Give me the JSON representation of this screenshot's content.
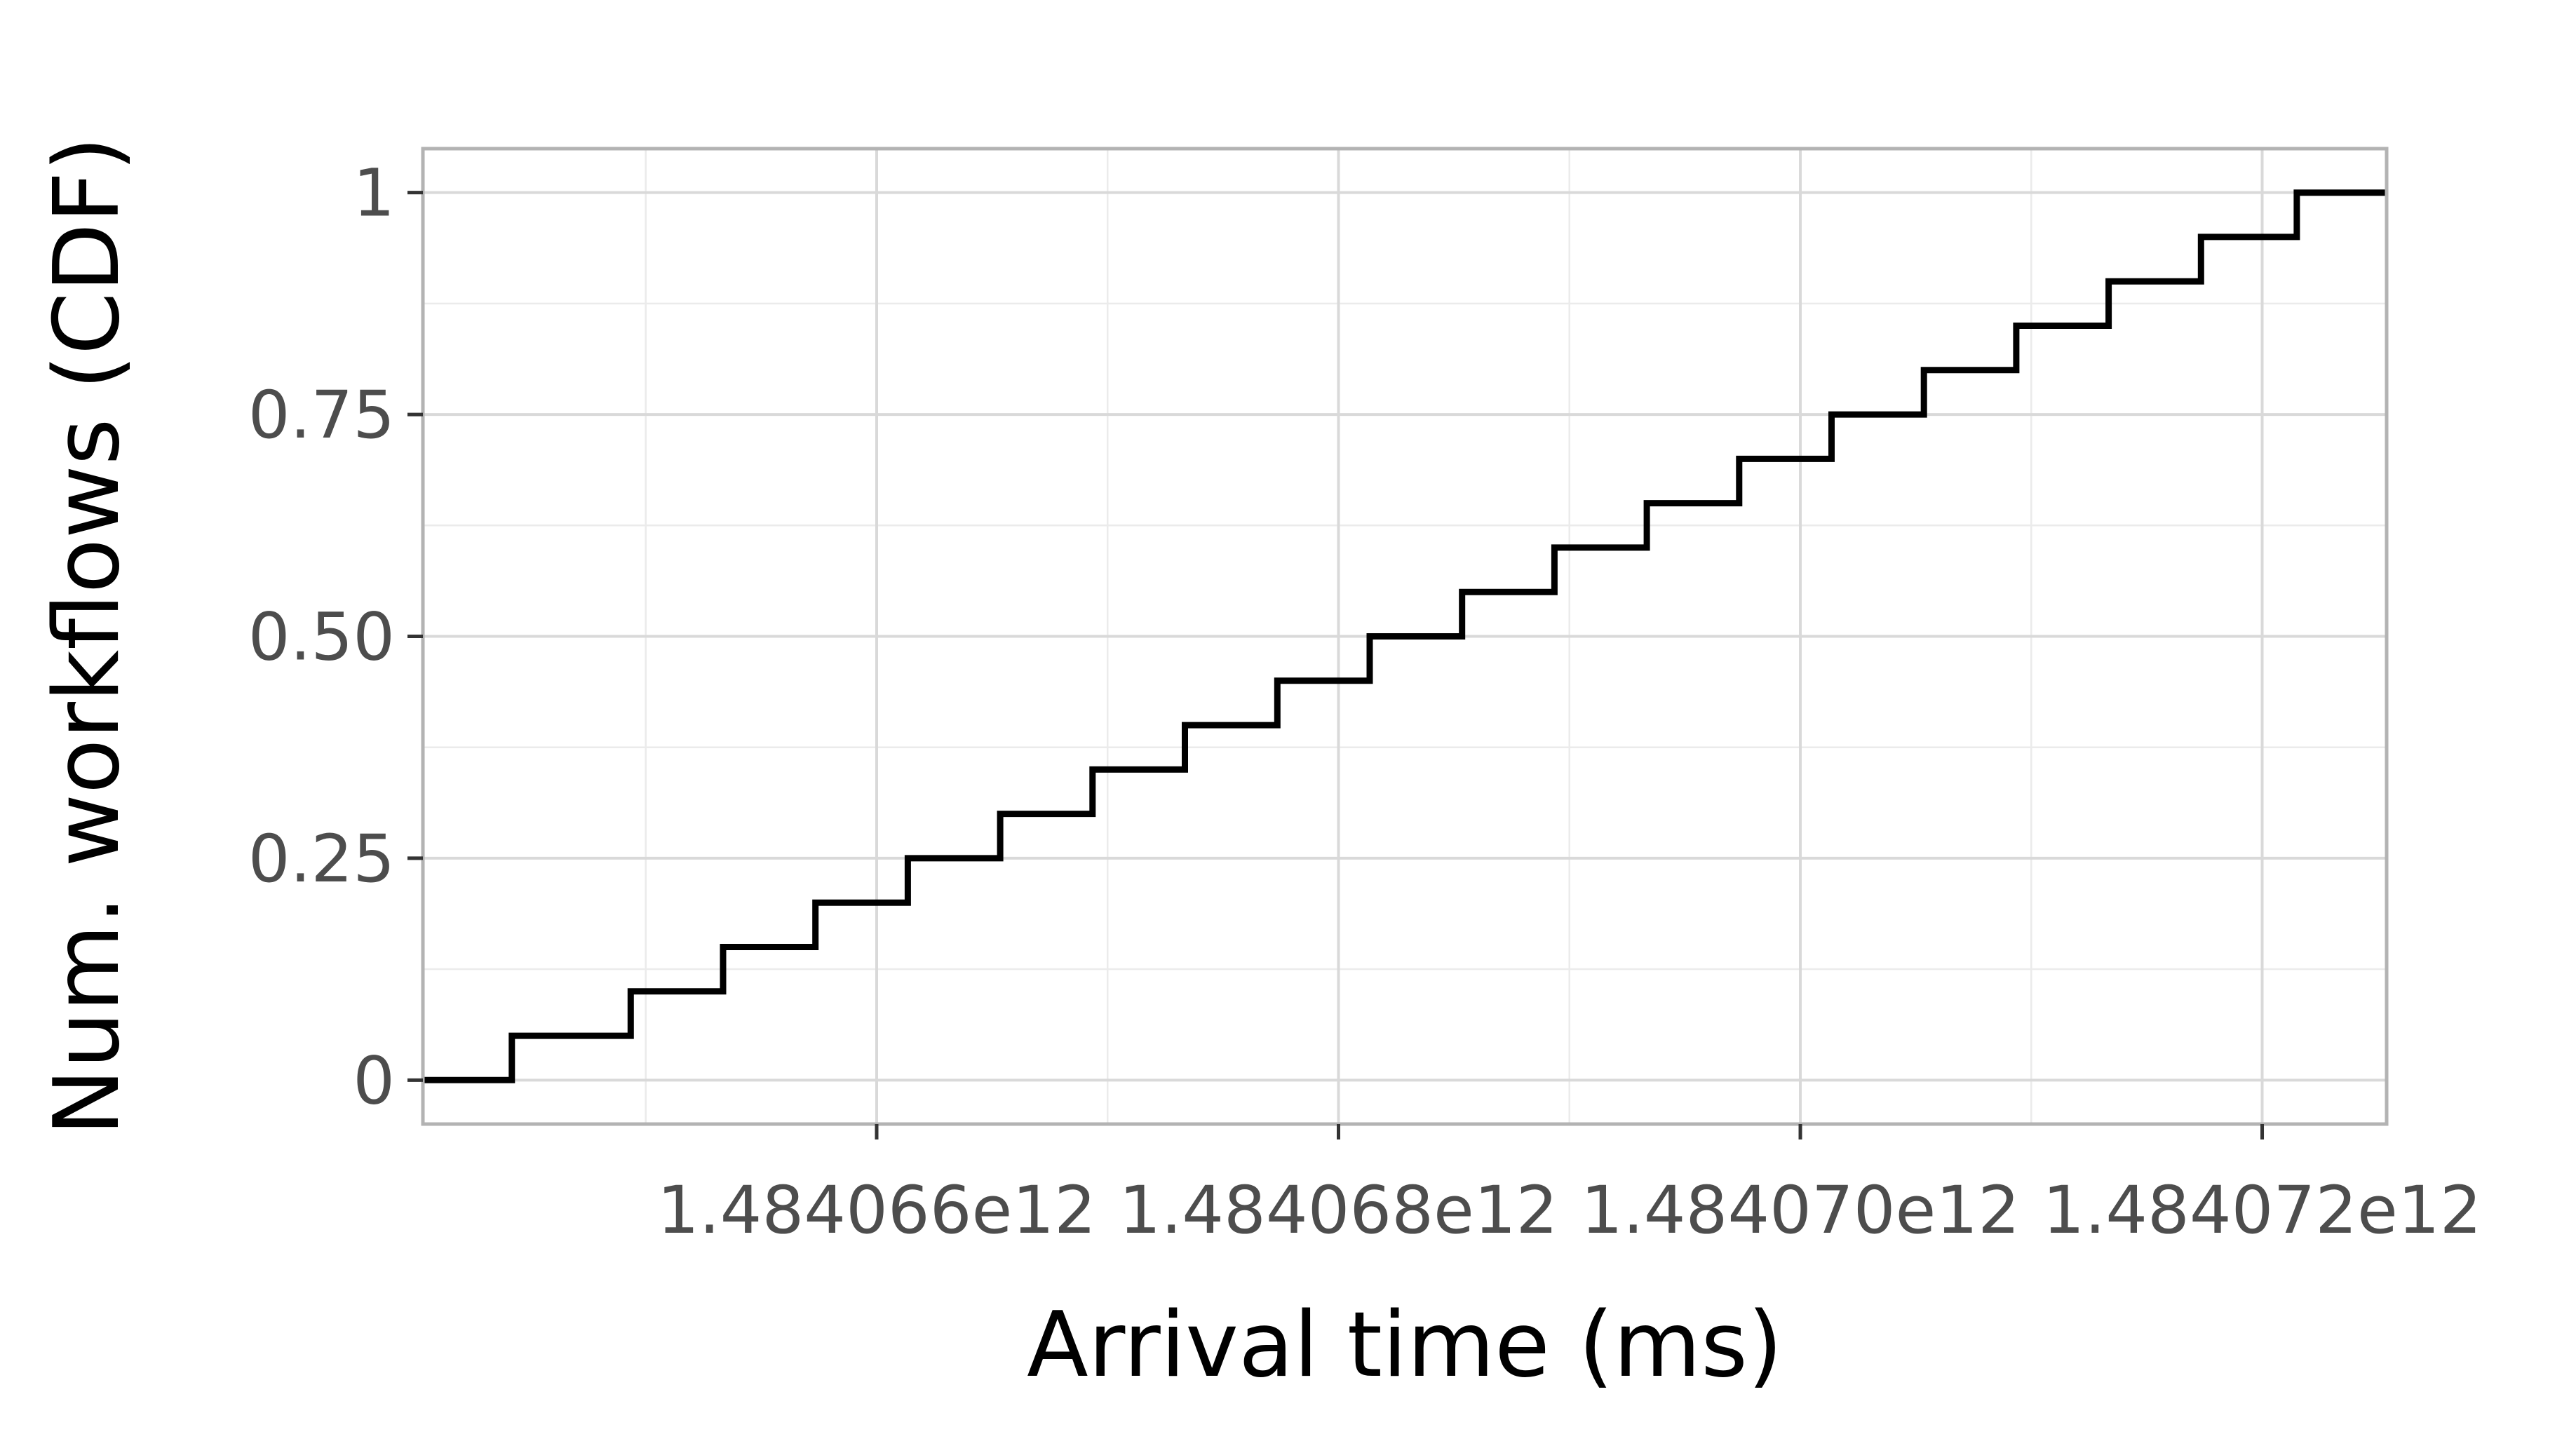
{
  "chart_data": {
    "type": "line",
    "step": true,
    "title": "",
    "xlabel": "Arrival time (ms)",
    "ylabel": "Num. workflows (CDF)",
    "xlim": [
      1484064035000,
      1484072539000
    ],
    "ylim": [
      -0.0495,
      1.0495
    ],
    "x_ticks": [
      {
        "value": 1484066000000,
        "label": "1.484066e12"
      },
      {
        "value": 1484068000000,
        "label": "1.484068e12"
      },
      {
        "value": 1484070000000,
        "label": "1.484070e12"
      },
      {
        "value": 1484072000000,
        "label": "1.484072e12"
      }
    ],
    "x_minor_ticks": [
      1484065000000,
      1484067000000,
      1484069000000,
      1484071000000
    ],
    "y_ticks": [
      {
        "value": 0,
        "label": "0"
      },
      {
        "value": 0.25,
        "label": "0.25"
      },
      {
        "value": 0.5,
        "label": "0.50"
      },
      {
        "value": 0.75,
        "label": "0.75"
      },
      {
        "value": 1,
        "label": "1"
      }
    ],
    "y_minor_ticks": [
      0.125,
      0.375,
      0.625,
      0.875
    ],
    "grid": true,
    "series": [
      {
        "color": "#000000",
        "points": [
          {
            "x": 1484064035000,
            "y": 0
          },
          {
            "x": 1484064420000,
            "y": 0.05
          },
          {
            "x": 1484064935000,
            "y": 0.1
          },
          {
            "x": 1484065335000,
            "y": 0.15
          },
          {
            "x": 1484065735000,
            "y": 0.2
          },
          {
            "x": 1484066135000,
            "y": 0.25
          },
          {
            "x": 1484066535000,
            "y": 0.3
          },
          {
            "x": 1484066935000,
            "y": 0.35
          },
          {
            "x": 1484067335000,
            "y": 0.4
          },
          {
            "x": 1484067735000,
            "y": 0.45
          },
          {
            "x": 1484068135000,
            "y": 0.5
          },
          {
            "x": 1484068535000,
            "y": 0.55
          },
          {
            "x": 1484068935000,
            "y": 0.6
          },
          {
            "x": 1484069335000,
            "y": 0.65
          },
          {
            "x": 1484069735000,
            "y": 0.7
          },
          {
            "x": 1484070135000,
            "y": 0.75
          },
          {
            "x": 1484070535000,
            "y": 0.8
          },
          {
            "x": 1484070935000,
            "y": 0.85
          },
          {
            "x": 1484071335000,
            "y": 0.9
          },
          {
            "x": 1484071735000,
            "y": 0.95
          },
          {
            "x": 1484072150000,
            "y": 1.0
          },
          {
            "x": 1484072539000,
            "y": 1.0
          }
        ]
      }
    ]
  }
}
